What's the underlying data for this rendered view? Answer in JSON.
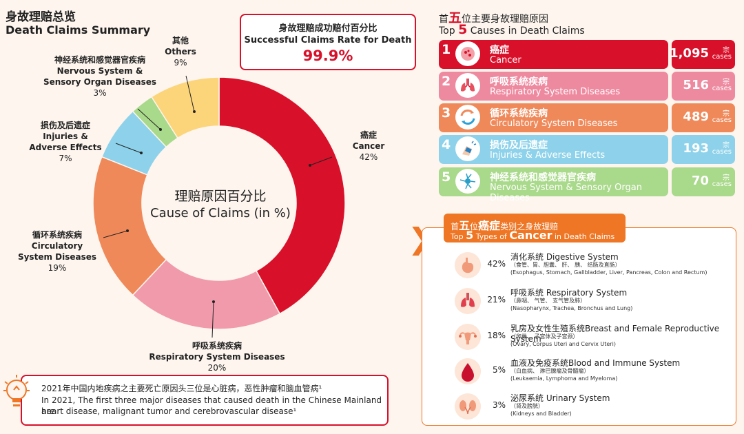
{
  "title_zh": "身故理赔总览",
  "title_en": "Death Claims Summary",
  "center_zh": "理赔原因百分比",
  "center_en": "Cause of Claims (in %)",
  "success_rate": {
    "zh": "身故理赔成功赔付百分比",
    "en": "Successful Claims Rate for Death",
    "value": "99.9%"
  },
  "chart_data": {
    "type": "pie",
    "categories": [
      "Cancer",
      "Respiratory System Diseases",
      "Circulatory System Diseases",
      "Injuries & Adverse Effects",
      "Nervous System & Sensory Organ Diseases",
      "Others"
    ],
    "values": [
      42,
      20,
      19,
      7,
      3,
      9
    ],
    "colors": [
      "#d8102a",
      "#f09aab",
      "#f0895a",
      "#8dd2ea",
      "#a9d98a",
      "#fcd47a"
    ],
    "labels": [
      {
        "zh": "癌症",
        "en": "Cancer",
        "pct": "42%"
      },
      {
        "zh": "呼吸系统疾病",
        "en": "Respiratory System Diseases",
        "pct": "20%"
      },
      {
        "zh": "循环系统疾病",
        "en1": "Circulatory",
        "en2": "System Diseases",
        "pct": "19%"
      },
      {
        "zh": "损伤及后遗症",
        "en1": "Injuries &",
        "en2": "Adverse Effects",
        "pct": "7%"
      },
      {
        "zh": "神经系统和感觉器官疾病",
        "en1": "Nervous System &",
        "en2": "Sensory Organ Diseases",
        "pct": "3%"
      },
      {
        "zh": "其他",
        "en": "Others",
        "pct": "9%"
      }
    ]
  },
  "note": {
    "zh": "2021年中国内地疾病之主要死亡原因头三位是心脏病，恶性肿瘤和脑血管病¹",
    "en1": "In 2021, The first three major diseases that caused death in the Chinese Mainland are",
    "en2": "heart disease, malignant tumor and cerebrovascular disease¹"
  },
  "top5": {
    "head_zh_pre": "首",
    "head_zh_num": "五",
    "head_zh_post": "位主要身故理赔原因",
    "head_en_pre": "Top",
    "head_en_num": "5",
    "head_en_post": "Causes in Death Claims",
    "unit_zh": "宗",
    "unit_en": "cases",
    "items": [
      {
        "rank": "1",
        "zh": "癌症",
        "en": "Cancer",
        "count": "1,095",
        "color": "#d8102a",
        "icon": "cancer-cell-icon"
      },
      {
        "rank": "2",
        "zh": "呼吸系统疾病",
        "en": "Respiratory System Diseases",
        "count": "516",
        "color": "#ee8aa0",
        "icon": "lungs-icon"
      },
      {
        "rank": "3",
        "zh": "循环系统疾病",
        "en": "Circulatory System Diseases",
        "count": "489",
        "color": "#f0895a",
        "icon": "circulation-arrows-icon"
      },
      {
        "rank": "4",
        "zh": "损伤及后遗症",
        "en": "Injuries & Adverse Effects",
        "count": "193",
        "color": "#8dd2ea",
        "icon": "injured-hand-icon"
      },
      {
        "rank": "5",
        "zh": "神经系统和感觉器官疾病",
        "en": "Nervous System & Sensory Organ Diseases",
        "count": "70",
        "color": "#a9d98a",
        "icon": "neuron-icon"
      }
    ]
  },
  "cancer": {
    "head_zh_pre": "首",
    "head_zh_num": "五",
    "head_zh_mid": "位",
    "head_zh_key": "癌症",
    "head_zh_post": "类别之身故理赔",
    "head_en_pre": "Top",
    "head_en_num": "5",
    "head_en_mid": "Types of",
    "head_en_key": "Cancer",
    "head_en_post": "in Death Claims",
    "items": [
      {
        "pct": "42%",
        "name": "消化系统 Digestive System",
        "sub": "（食管、胃、胆囊、 肝、 胰、 结肠及直肠）",
        "sub_en": "(Esophagus, Stomach, Gallbladder, Liver, Pancreas, Colon and Rectum)",
        "icon": "stomach-icon"
      },
      {
        "pct": "21%",
        "name": "呼吸系统 Respiratory System",
        "sub": "（鼻咽、 气管、 支气管及肺）",
        "sub_en": "(Nasopharynx, Trachea, Bronchus and Lung)",
        "icon": "lungs-icon"
      },
      {
        "pct": "18%",
        "name": "乳房及女性生殖系统Breast and Female Reproductive System",
        "sub": "（卵巢、 子宫体及子宫颈）",
        "sub_en": "(Ovary, Corpus Uteri and Cervix Uteri)",
        "icon": "uterus-icon"
      },
      {
        "pct": "5%",
        "name": "血液及免疫系统Blood and Immune System",
        "sub": "（白血病、 淋巴腺瘤及骨髓瘤）",
        "sub_en": "(Leukaemia, Lymphoma and Myeloma)",
        "icon": "blood-drop-icon"
      },
      {
        "pct": "3%",
        "name": "泌尿系统 Urinary System",
        "sub": "（肾及膀胱）",
        "sub_en": "(Kidneys and Bladder)",
        "icon": "kidneys-icon"
      }
    ]
  }
}
